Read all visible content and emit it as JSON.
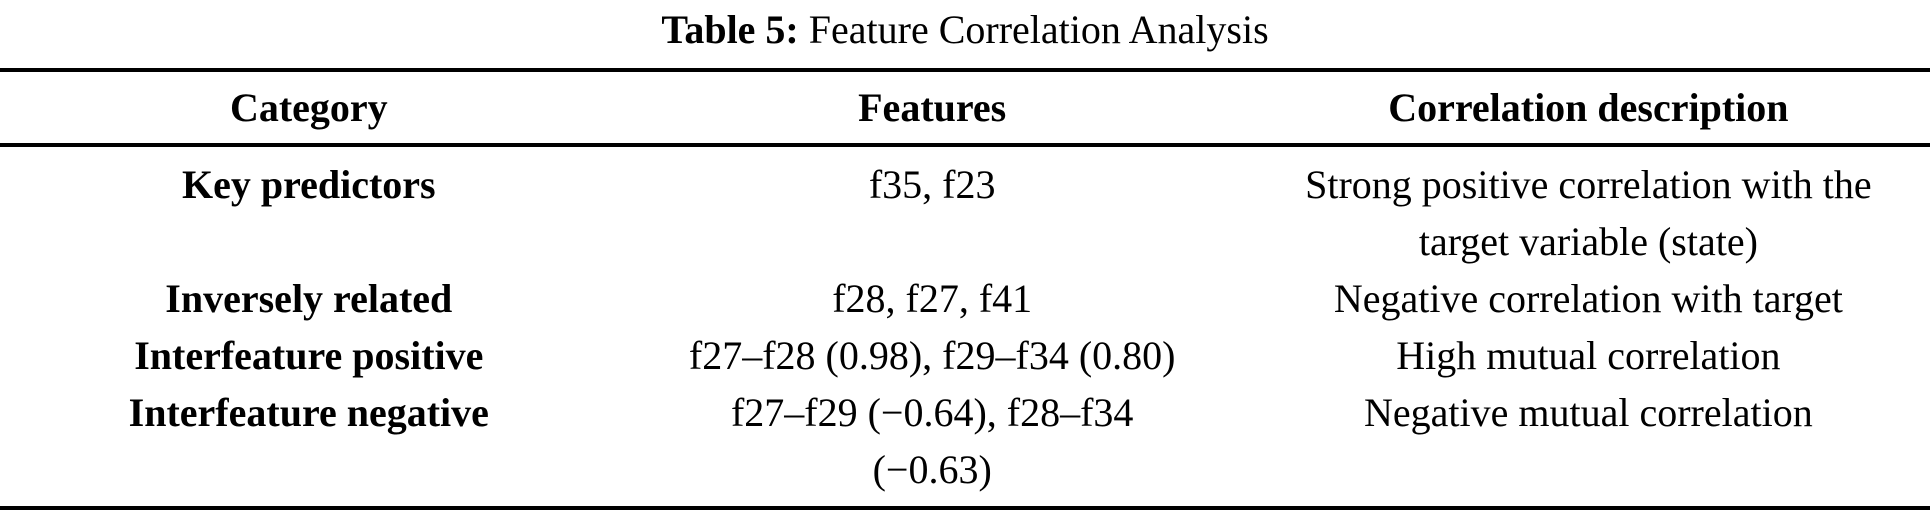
{
  "page": {
    "background_color": "#ffffff",
    "text_color": "#000000",
    "rule_color": "#000000"
  },
  "caption": {
    "label": "Table 5:",
    "title": "Feature Correlation Analysis"
  },
  "table": {
    "headers": [
      "Category",
      "Features",
      "Correlation description"
    ],
    "rows": [
      {
        "category": "Key predictors",
        "features": "f35, f23",
        "description": "Strong positive correlation with the\ntarget variable (state)"
      },
      {
        "category": "Inversely related",
        "features": "f28, f27, f41",
        "description": "Negative correlation with target"
      },
      {
        "category": "Interfeature positive",
        "features": "f27–f28 (0.98), f29–f34 (0.80)",
        "description": "High mutual correlation"
      },
      {
        "category": "Interfeature negative",
        "features": "f27–f29 (−0.64), f28–f34\n(−0.63)",
        "description": "Negative mutual correlation"
      }
    ]
  }
}
